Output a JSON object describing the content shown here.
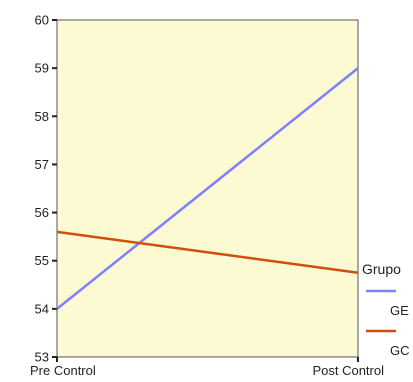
{
  "chart_data": {
    "type": "line",
    "title": "",
    "xlabel": "",
    "ylabel": "",
    "categories": [
      "Pre Control",
      "Post Control"
    ],
    "ylim": [
      53,
      60
    ],
    "yticks": [
      53,
      54,
      55,
      56,
      57,
      58,
      59,
      60
    ],
    "grid": false,
    "plot_background": "#fbfad2",
    "legend": {
      "title": "Grupo",
      "placement": "right"
    },
    "series": [
      {
        "name": "GE",
        "values": [
          54.0,
          59.0
        ],
        "color": "#8080ff"
      },
      {
        "name": "GC",
        "values": [
          55.6,
          54.75
        ],
        "color": "#d24e0c"
      }
    ]
  }
}
